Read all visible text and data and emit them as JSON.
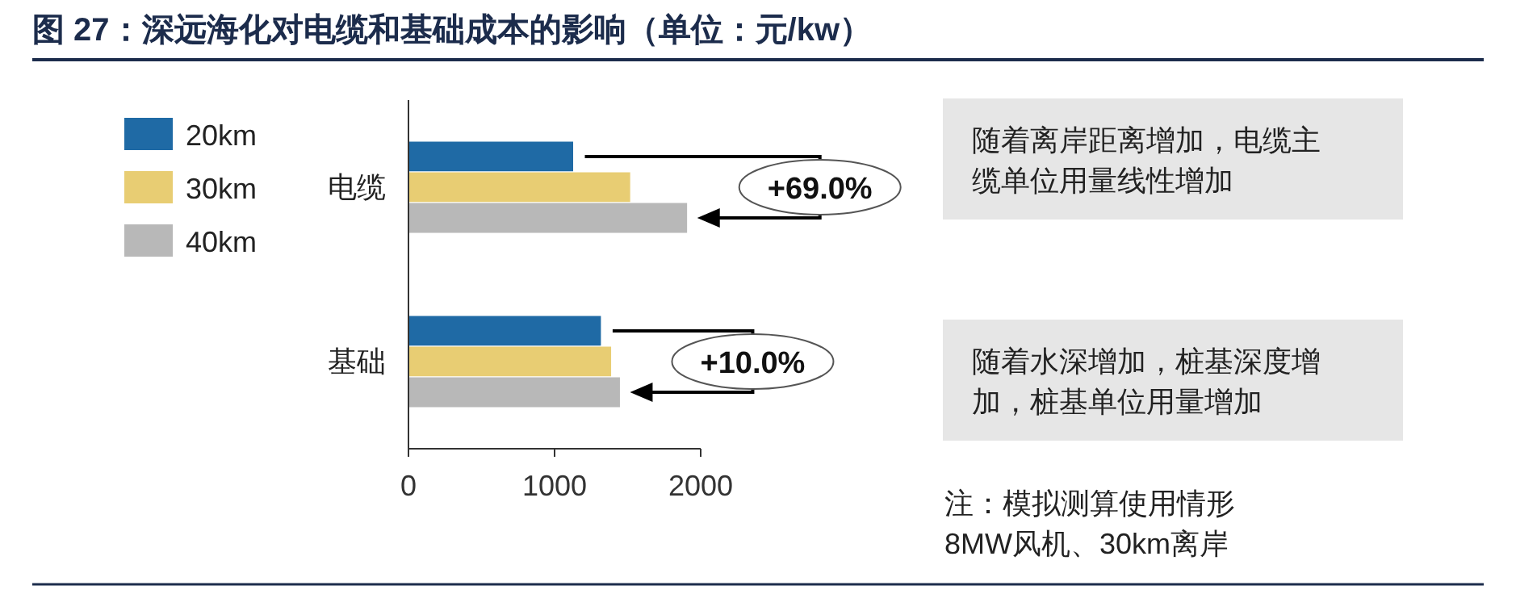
{
  "chart_data": {
    "type": "bar",
    "orientation": "horizontal",
    "title": "图 27：深远海化对电缆和基础成本的影响（单位：元/kw）",
    "categories": [
      "电缆",
      "基础"
    ],
    "series": [
      {
        "name": "20km",
        "color": "#1f6aa5",
        "values": [
          1130,
          1320
        ]
      },
      {
        "name": "30km",
        "color": "#e8cd73",
        "values": [
          1520,
          1390
        ]
      },
      {
        "name": "40km",
        "color": "#b8b8b8",
        "values": [
          1910,
          1450
        ]
      }
    ],
    "xlim": [
      0,
      2000
    ],
    "xticks": [
      0,
      1000,
      2000
    ],
    "legend": "left",
    "grid": false,
    "annotations": [
      "+69.0%",
      "+10.0%",
      "随着离岸距离增加，电缆主缆单位用量线性增加",
      "随着水深增加，桩基深度增加，桩基单位用量增加",
      "注：模拟测算使用情形",
      "8MW风机、30km离岸"
    ]
  }
}
